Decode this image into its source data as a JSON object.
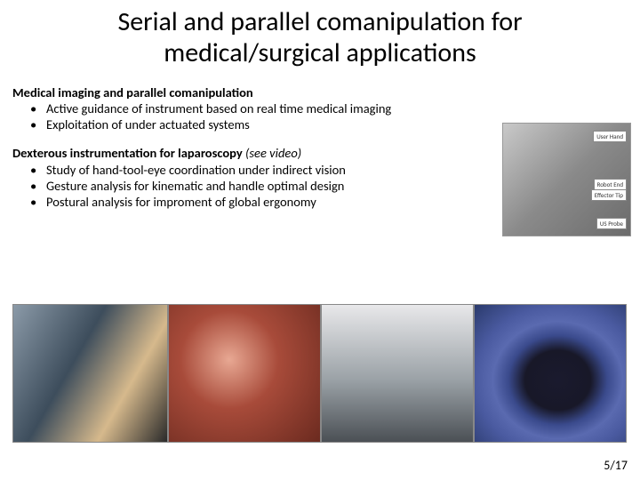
{
  "title_line1": "Serial and parallel comanipulation for",
  "title_line2": "medical/surgical applications",
  "section1": {
    "heading": "Medical imaging and parallel comanipulation",
    "bullets": [
      "Active guidance of instrument based on real time medical imaging",
      "Exploitation of under actuated systems"
    ]
  },
  "section2": {
    "heading": "Dexterous instrumentation for laparoscopy",
    "note": " (see video)",
    "bullets": [
      "Study of hand-tool-eye coordination under indirect vision",
      "Gesture analysis for kinematic and handle optimal design",
      "Postural analysis for improment of global ergonomy"
    ]
  },
  "top_image_labels": {
    "l1": "User Hand",
    "l2": "Robot End",
    "l3": "Effector Tip",
    "l4": "US Probe"
  },
  "page_number": "5/17",
  "colors": {
    "background": "#ffffff",
    "text": "#000000"
  }
}
